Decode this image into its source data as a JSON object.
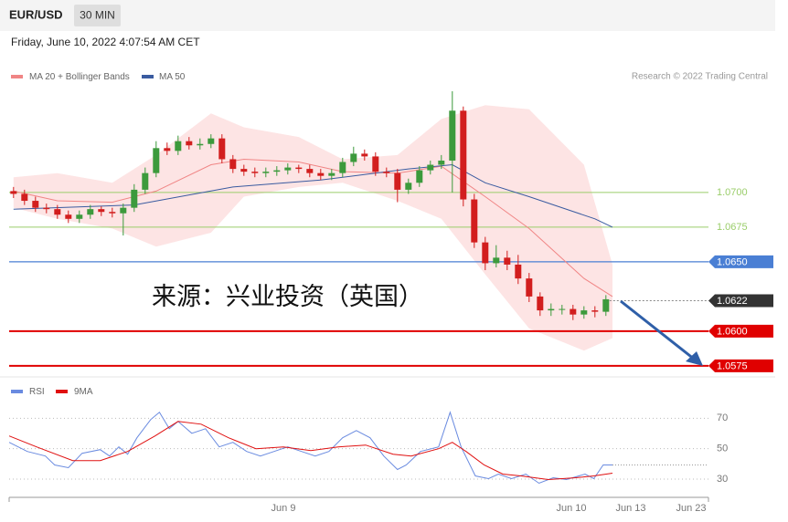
{
  "header": {
    "symbol": "EUR/USD",
    "timeframe": "30 MIN",
    "timestamp": "Friday, June 10, 2022 4:07:54 AM CET"
  },
  "chart_data": [
    {
      "type": "candlestick",
      "source": "Research © 2022 Trading Central",
      "annotation": "来源：兴业投资（英国）",
      "xlim": [
        -0.4,
        63.35
      ],
      "ylim": [
        1.0569,
        1.0773
      ],
      "up_color": "#3c9a3c",
      "down_color": "#d21e1e",
      "ohlc": {
        "open": [
          1.0701,
          1.0699,
          1.0694,
          1.0689,
          1.0688,
          1.0684,
          1.0681,
          1.0684,
          1.0688,
          1.0686,
          1.0685,
          1.0689,
          1.0702,
          1.0714,
          1.0732,
          1.073,
          1.0737,
          1.0734,
          1.0735,
          1.0739,
          1.0724,
          1.0717,
          1.0715,
          1.0714,
          1.0715,
          1.0716,
          1.0718,
          1.0717,
          1.0714,
          1.0712,
          1.0714,
          1.0722,
          1.0728,
          1.0726,
          1.0715,
          1.0714,
          1.0702,
          1.0707,
          1.0716,
          1.072,
          1.0723,
          1.0759,
          1.0695,
          1.0664,
          1.0649,
          1.0653,
          1.0648,
          1.0638,
          1.0625,
          1.0615,
          1.0616,
          1.0616,
          1.0612,
          1.0615,
          1.0614
        ],
        "high": [
          1.0704,
          1.0702,
          1.0697,
          1.0692,
          1.0691,
          1.0687,
          1.0687,
          1.0691,
          1.069,
          1.0689,
          1.0692,
          1.0706,
          1.0718,
          1.0737,
          1.0736,
          1.0741,
          1.074,
          1.0739,
          1.0742,
          1.0742,
          1.0727,
          1.072,
          1.0718,
          1.0718,
          1.0719,
          1.0721,
          1.072,
          1.072,
          1.0717,
          1.0717,
          1.0725,
          1.0733,
          1.0731,
          1.0729,
          1.0718,
          1.0717,
          1.071,
          1.0719,
          1.0723,
          1.0727,
          1.0773,
          1.0762,
          1.0699,
          1.0668,
          1.0662,
          1.0658,
          1.0655,
          1.0642,
          1.0628,
          1.062,
          1.0619,
          1.0619,
          1.0618,
          1.0618,
          1.0626
        ],
        "low": [
          1.0696,
          1.0691,
          1.0686,
          1.0685,
          1.0681,
          1.0678,
          1.0678,
          1.0681,
          1.0683,
          1.0682,
          1.0669,
          1.0686,
          1.0699,
          1.0711,
          1.0727,
          1.0727,
          1.0731,
          1.0731,
          1.0732,
          1.0721,
          1.0714,
          1.0712,
          1.0711,
          1.0711,
          1.0712,
          1.0713,
          1.0714,
          1.0711,
          1.0709,
          1.0709,
          1.0711,
          1.0719,
          1.0723,
          1.0712,
          1.0711,
          1.0693,
          1.0699,
          1.0704,
          1.0713,
          1.0717,
          1.07,
          1.069,
          1.066,
          1.0644,
          1.0646,
          1.0644,
          1.0634,
          1.0621,
          1.0611,
          1.0611,
          1.0612,
          1.0608,
          1.0609,
          1.061,
          1.0611
        ],
        "close": [
          1.0699,
          1.0694,
          1.0689,
          1.0688,
          1.0684,
          1.0681,
          1.0684,
          1.0688,
          1.0686,
          1.0685,
          1.0689,
          1.0702,
          1.0714,
          1.0732,
          1.073,
          1.0737,
          1.0734,
          1.0735,
          1.0739,
          1.0724,
          1.0717,
          1.0715,
          1.0714,
          1.0715,
          1.0716,
          1.0718,
          1.0717,
          1.0714,
          1.0712,
          1.0714,
          1.0722,
          1.0728,
          1.0726,
          1.0715,
          1.0714,
          1.0702,
          1.0707,
          1.0716,
          1.072,
          1.0723,
          1.0759,
          1.0695,
          1.0664,
          1.0649,
          1.0653,
          1.0648,
          1.0638,
          1.0625,
          1.0615,
          1.0616,
          1.0616,
          1.0612,
          1.0615,
          1.0614,
          1.0623
        ]
      },
      "bands": {
        "name": "MA 20 + Bollinger Bands",
        "color": "#f08585",
        "fill": "#fde4e4",
        "x": [
          0,
          4,
          9,
          13,
          18,
          21,
          26,
          30,
          35,
          39,
          43,
          47,
          52,
          54.6
        ],
        "upper": [
          1.0711,
          1.0714,
          1.0707,
          1.0727,
          1.0757,
          1.0747,
          1.074,
          1.0724,
          1.0727,
          1.0753,
          1.0763,
          1.076,
          1.072,
          1.0648
        ],
        "middle": [
          1.0701,
          1.0694,
          1.0693,
          1.0701,
          1.072,
          1.0724,
          1.0722,
          1.0715,
          1.0714,
          1.0719,
          1.0697,
          1.0674,
          1.0638,
          1.0625
        ],
        "lower": [
          1.0689,
          1.0681,
          1.0674,
          1.0661,
          1.0671,
          1.0697,
          1.0704,
          1.0707,
          1.0694,
          1.0681,
          1.0641,
          1.0602,
          1.0586,
          1.0595
        ]
      },
      "ma50": {
        "name": "MA 50",
        "color": "#3a5ba0",
        "x": [
          0,
          11,
          20,
          28,
          36,
          40,
          43,
          47,
          53,
          54.6
        ],
        "values": [
          1.0688,
          1.0691,
          1.0704,
          1.0709,
          1.0717,
          1.072,
          1.0707,
          1.0697,
          1.0681,
          1.0675
        ]
      },
      "levels": [
        {
          "value": 1.07,
          "label": "1.0700",
          "color": "#9acd6a",
          "style": "line"
        },
        {
          "value": 1.0675,
          "label": "1.0675",
          "color": "#9acd6a",
          "style": "line"
        },
        {
          "value": 1.065,
          "label": "1.0650",
          "color": "#4a7fd4",
          "style": "tag"
        },
        {
          "value": 1.0622,
          "label": "1.0622",
          "color": "#333333",
          "style": "current"
        },
        {
          "value": 1.06,
          "label": "1.0600",
          "color": "#e00000",
          "style": "tag"
        },
        {
          "value": 1.0575,
          "label": "1.0575",
          "color": "#e00000",
          "style": "tag"
        }
      ]
    },
    {
      "type": "line",
      "xlim": [
        -0.4,
        63.35
      ],
      "ylim": [
        21,
        81
      ],
      "yticks": [
        30,
        50,
        70
      ],
      "xticks": [
        {
          "value": 24.6,
          "label": "Jun 9"
        },
        {
          "value": 50.85,
          "label": "Jun 10"
        },
        {
          "value": 56.27,
          "label": "Jun 13"
        },
        {
          "value": 61.77,
          "label": "Jun 23"
        }
      ],
      "series": [
        {
          "name": "RSI",
          "color": "#6a8be0",
          "x": [
            -0.4,
            1.25,
            2.9,
            3.75,
            5,
            6.25,
            7.9,
            8.75,
            9.6,
            10.4,
            11.25,
            12.5,
            13.3,
            14.2,
            15,
            16.25,
            17.5,
            18.75,
            20,
            21.25,
            22.5,
            23.75,
            25,
            26.25,
            27.5,
            28.75,
            30,
            31.25,
            32.5,
            33.75,
            35,
            35.8,
            37.1,
            38.75,
            39.8,
            40.8,
            42.1,
            43.3,
            44.2,
            45.4,
            46.7,
            47.9,
            49.2,
            50.4,
            52.1,
            52.9,
            53.75,
            54.6
          ],
          "values": [
            54.2,
            48.2,
            45.2,
            39.3,
            37.5,
            47.0,
            49.4,
            45.2,
            51.2,
            46.4,
            57.2,
            69.1,
            73.9,
            63.1,
            67.9,
            60.1,
            63.1,
            51.2,
            54.2,
            48.2,
            45.2,
            48.2,
            51.2,
            48.2,
            45.2,
            48.2,
            57.2,
            61.9,
            57.2,
            45.2,
            36.3,
            39.3,
            48.2,
            51.2,
            73.9,
            51.2,
            32.1,
            30.3,
            33.3,
            30.3,
            33.3,
            27.3,
            30.9,
            29.7,
            33.3,
            30.3,
            39.3,
            39.3
          ]
        },
        {
          "name": "9MA",
          "color": "#e01010",
          "x": [
            -0.4,
            2.1,
            5.4,
            7.9,
            10.4,
            12.9,
            15,
            17.1,
            19.6,
            22.1,
            24.6,
            27.1,
            29.6,
            32.1,
            34.6,
            36.25,
            38.75,
            40,
            41.25,
            42.9,
            44.6,
            46.25,
            48.75,
            51.25,
            52.9,
            54.6
          ],
          "values": [
            58.4,
            51.2,
            42.2,
            42.2,
            48.2,
            58.4,
            67.9,
            66.1,
            57.2,
            50,
            51.2,
            48.8,
            51.2,
            52.4,
            46.4,
            45.2,
            50,
            54.2,
            48.2,
            39.3,
            33.3,
            32.1,
            29.7,
            30.9,
            32.1,
            33.9
          ]
        }
      ]
    }
  ]
}
